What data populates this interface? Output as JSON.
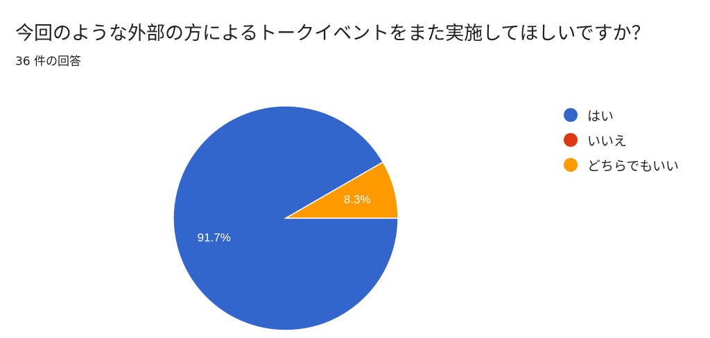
{
  "header": {
    "title": "今回のような外部の方によるトークイベントをまた実施してほしいですか？",
    "response_count": "36 件の回答"
  },
  "chart_data": {
    "type": "pie",
    "categories": [
      "はい",
      "いいえ",
      "どちらでもいい"
    ],
    "values": [
      33,
      0,
      3
    ],
    "percent_labels": [
      "91.7%",
      "",
      "8.3%"
    ],
    "colors": [
      "#3366cc",
      "#dc3912",
      "#ff9900"
    ],
    "legend_position": "right"
  }
}
